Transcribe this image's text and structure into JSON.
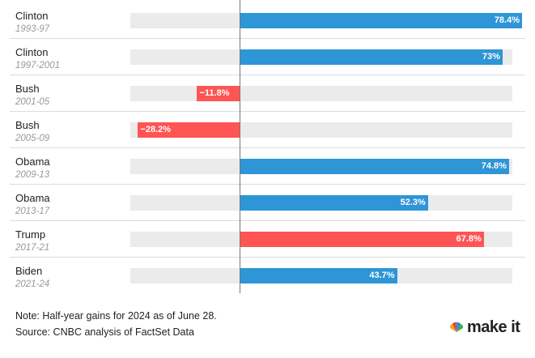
{
  "chart_data": {
    "type": "bar",
    "orientation": "horizontal",
    "xlim": [
      -28.2,
      78.4
    ],
    "unit": "%",
    "presidencies": [
      {
        "name": "Clinton",
        "term": "1993-97",
        "value": 78.4,
        "label": "78.4%",
        "color": "#2e95d6"
      },
      {
        "name": "Clinton",
        "term": "1997-2001",
        "value": 73,
        "label": "73%",
        "color": "#2e95d6"
      },
      {
        "name": "Bush",
        "term": "2001-05",
        "value": -11.8,
        "label": "−11.8%",
        "color": "#ff5454"
      },
      {
        "name": "Bush",
        "term": "2005-09",
        "value": -28.2,
        "label": "−28.2%",
        "color": "#ff5454"
      },
      {
        "name": "Obama",
        "term": "2009-13",
        "value": 74.8,
        "label": "74.8%",
        "color": "#2e95d6"
      },
      {
        "name": "Obama",
        "term": "2013-17",
        "value": 52.3,
        "label": "52.3%",
        "color": "#2e95d6"
      },
      {
        "name": "Trump",
        "term": "2017-21",
        "value": 67.8,
        "label": "67.8%",
        "color": "#ff5454"
      },
      {
        "name": "Biden",
        "term": "2021-24",
        "value": 43.7,
        "label": "43.7%",
        "color": "#2e95d6"
      }
    ]
  },
  "footer": {
    "note": "Note: Half-year gains for 2024 as of June 28.",
    "source": "Source: CNBC analysis of FactSet Data",
    "brand": "make it"
  }
}
